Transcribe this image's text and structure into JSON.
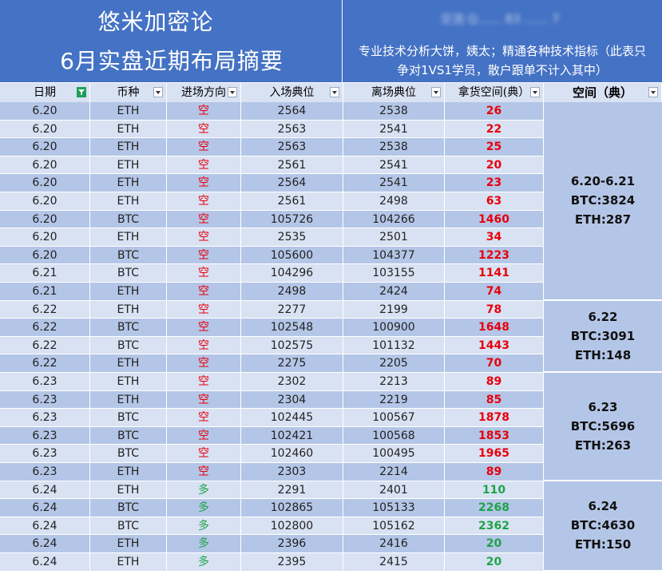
{
  "header": {
    "title_line1": "悠米加密论",
    "title_line2": "6月实盘近期布局摘要",
    "blurred_text": "交流 Q…… 83 …… 7",
    "description_line1": "专业技术分析大饼，姨太；精通各种技术指标（此表只",
    "description_line2": "争对1VS1学员，散户跟单不计入其中）"
  },
  "columns": [
    "日期",
    "币种",
    "进场方向",
    "入场典位",
    "离场典位",
    "拿货空间(典）",
    "空间（典）"
  ],
  "colors": {
    "short": "#e8000b",
    "long": "#1fa34a",
    "header_blue": "#4472c4",
    "row_dark": "#b4c6e7",
    "row_light": "#d9e2f3"
  },
  "rows": [
    {
      "date": "6.20",
      "coin": "ETH",
      "dir": "空",
      "entry": "2564",
      "exit": "2538",
      "space": "26"
    },
    {
      "date": "6.20",
      "coin": "ETH",
      "dir": "空",
      "entry": "2563",
      "exit": "2541",
      "space": "22"
    },
    {
      "date": "6.20",
      "coin": "ETH",
      "dir": "空",
      "entry": "2563",
      "exit": "2538",
      "space": "25"
    },
    {
      "date": "6.20",
      "coin": "ETH",
      "dir": "空",
      "entry": "2561",
      "exit": "2541",
      "space": "20"
    },
    {
      "date": "6.20",
      "coin": "ETH",
      "dir": "空",
      "entry": "2564",
      "exit": "2541",
      "space": "23"
    },
    {
      "date": "6.20",
      "coin": "ETH",
      "dir": "空",
      "entry": "2561",
      "exit": "2498",
      "space": "63"
    },
    {
      "date": "6.20",
      "coin": "BTC",
      "dir": "空",
      "entry": "105726",
      "exit": "104266",
      "space": "1460"
    },
    {
      "date": "6.20",
      "coin": "ETH",
      "dir": "空",
      "entry": "2535",
      "exit": "2501",
      "space": "34"
    },
    {
      "date": "6.20",
      "coin": "BTC",
      "dir": "空",
      "entry": "105600",
      "exit": "104377",
      "space": "1223"
    },
    {
      "date": "6.21",
      "coin": "BTC",
      "dir": "空",
      "entry": "104296",
      "exit": "103155",
      "space": "1141"
    },
    {
      "date": "6.21",
      "coin": "ETH",
      "dir": "空",
      "entry": "2498",
      "exit": "2424",
      "space": "74"
    },
    {
      "date": "6.22",
      "coin": "ETH",
      "dir": "空",
      "entry": "2277",
      "exit": "2199",
      "space": "78"
    },
    {
      "date": "6.22",
      "coin": "BTC",
      "dir": "空",
      "entry": "102548",
      "exit": "100900",
      "space": "1648"
    },
    {
      "date": "6.22",
      "coin": "BTC",
      "dir": "空",
      "entry": "102575",
      "exit": "101132",
      "space": "1443"
    },
    {
      "date": "6.22",
      "coin": "ETH",
      "dir": "空",
      "entry": "2275",
      "exit": "2205",
      "space": "70"
    },
    {
      "date": "6.23",
      "coin": "ETH",
      "dir": "空",
      "entry": "2302",
      "exit": "2213",
      "space": "89"
    },
    {
      "date": "6.23",
      "coin": "ETH",
      "dir": "空",
      "entry": "2304",
      "exit": "2219",
      "space": "85"
    },
    {
      "date": "6.23",
      "coin": "BTC",
      "dir": "空",
      "entry": "102445",
      "exit": "100567",
      "space": "1878"
    },
    {
      "date": "6.23",
      "coin": "BTC",
      "dir": "空",
      "entry": "102421",
      "exit": "100568",
      "space": "1853"
    },
    {
      "date": "6.23",
      "coin": "BTC",
      "dir": "空",
      "entry": "102460",
      "exit": "100495",
      "space": "1965"
    },
    {
      "date": "6.23",
      "coin": "ETH",
      "dir": "空",
      "entry": "2303",
      "exit": "2214",
      "space": "89"
    },
    {
      "date": "6.24",
      "coin": "ETH",
      "dir": "多",
      "entry": "2291",
      "exit": "2401",
      "space": "110"
    },
    {
      "date": "6.24",
      "coin": "BTC",
      "dir": "多",
      "entry": "102865",
      "exit": "105133",
      "space": "2268"
    },
    {
      "date": "6.24",
      "coin": "BTC",
      "dir": "多",
      "entry": "102800",
      "exit": "105162",
      "space": "2362"
    },
    {
      "date": "6.24",
      "coin": "ETH",
      "dir": "多",
      "entry": "2396",
      "exit": "2416",
      "space": "20"
    },
    {
      "date": "6.24",
      "coin": "ETH",
      "dir": "多",
      "entry": "2395",
      "exit": "2415",
      "space": "20"
    }
  ],
  "summaries": [
    {
      "range": "6.20-6.21",
      "btc": "BTC:3824",
      "eth": "ETH:287",
      "row_count": 11
    },
    {
      "range": "6.22",
      "btc": "BTC:3091",
      "eth": "ETH:148",
      "row_count": 4
    },
    {
      "range": "6.23",
      "btc": "BTC:5696",
      "eth": "ETH:263",
      "row_count": 6
    },
    {
      "range": "6.24",
      "btc": "BTC:4630",
      "eth": "ETH:150",
      "row_count": 5
    }
  ]
}
